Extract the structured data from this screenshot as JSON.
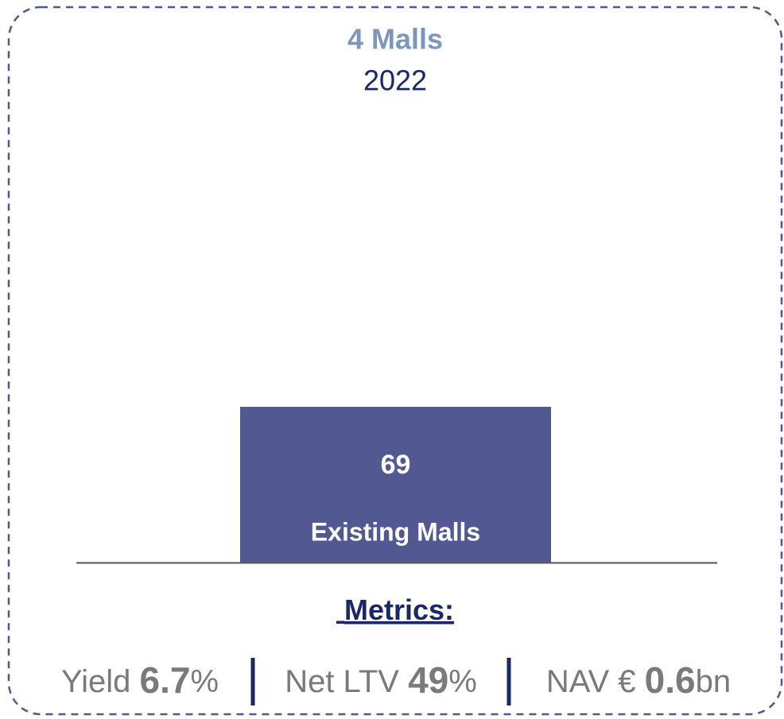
{
  "chart_data": {
    "type": "bar",
    "title": "4 Malls",
    "subtitle": "2022",
    "categories": [
      "Existing Malls"
    ],
    "values": [
      69
    ],
    "color": "#525891",
    "ylim": [
      0,
      200
    ]
  },
  "metrics": {
    "heading": "Metrics:",
    "items": [
      {
        "label": "Yield",
        "value": 6.7,
        "unit": "%"
      },
      {
        "label": "Net LTV",
        "value": 49,
        "unit": "%"
      },
      {
        "label": "NAV €",
        "value": 0.6,
        "unit": "bn"
      }
    ]
  }
}
